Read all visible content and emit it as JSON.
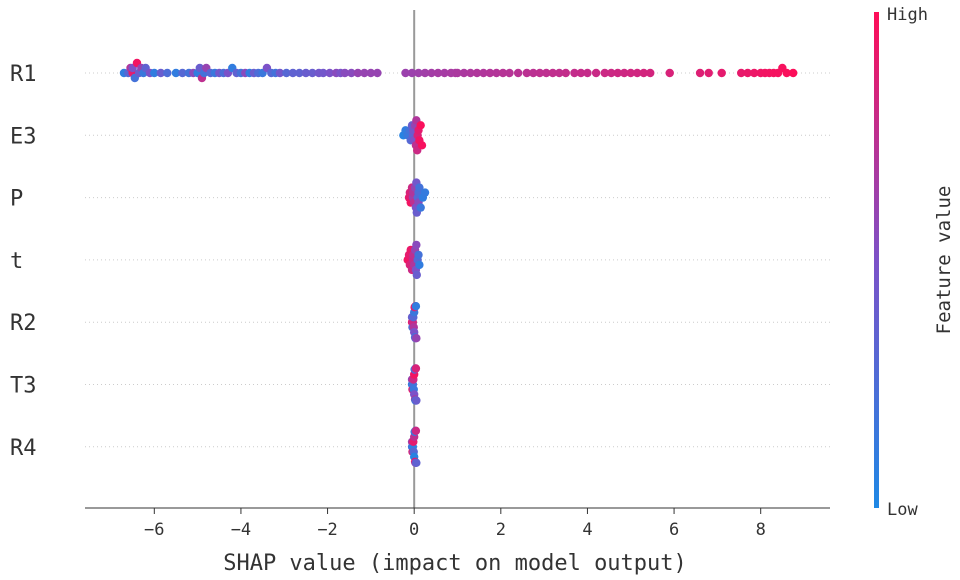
{
  "chart_data": {
    "type": "scatter",
    "subtype": "shap-beeswarm",
    "title": "",
    "xlabel": "SHAP value (impact on model output)",
    "ylabel": "",
    "xlim": [
      -7.6,
      9.6
    ],
    "xticks": [
      -6,
      -4,
      -2,
      0,
      2,
      4,
      6,
      8
    ],
    "xtick_labels": [
      "−6",
      "−4",
      "−2",
      "0",
      "2",
      "4",
      "6",
      "8"
    ],
    "grid": false,
    "colorbar": {
      "label": "Feature value",
      "high_label": "High",
      "low_label": "Low",
      "low_color": "#1e88e5",
      "high_color": "#ff0d57"
    },
    "features": [
      {
        "name": "R1",
        "points": [
          [
            -6.7,
            0.1
          ],
          [
            -6.6,
            0.3
          ],
          [
            -6.55,
            0.7
          ],
          [
            -6.5,
            0.9
          ],
          [
            -6.5,
            0.5
          ],
          [
            -6.45,
            0.2
          ],
          [
            -6.4,
            0.95
          ],
          [
            -6.35,
            0.4
          ],
          [
            -6.3,
            0.6
          ],
          [
            -6.25,
            0.15
          ],
          [
            -6.2,
            0.35
          ],
          [
            -6.1,
            0.5
          ],
          [
            -6.0,
            0.1
          ],
          [
            -5.85,
            0.4
          ],
          [
            -5.7,
            0.25
          ],
          [
            -5.5,
            0.1
          ],
          [
            -5.35,
            0.3
          ],
          [
            -5.2,
            0.2
          ],
          [
            -5.1,
            0.55
          ],
          [
            -5.0,
            0.1
          ],
          [
            -4.95,
            0.4
          ],
          [
            -4.9,
            0.75
          ],
          [
            -4.85,
            0.2
          ],
          [
            -4.8,
            0.6
          ],
          [
            -4.7,
            0.3
          ],
          [
            -4.6,
            0.15
          ],
          [
            -4.5,
            0.45
          ],
          [
            -4.4,
            0.25
          ],
          [
            -4.3,
            0.5
          ],
          [
            -4.2,
            0.1
          ],
          [
            -4.1,
            0.35
          ],
          [
            -4.0,
            0.2
          ],
          [
            -3.9,
            0.55
          ],
          [
            -3.8,
            0.1
          ],
          [
            -3.7,
            0.4
          ],
          [
            -3.6,
            0.25
          ],
          [
            -3.5,
            0.15
          ],
          [
            -3.4,
            0.5
          ],
          [
            -3.3,
            0.3
          ],
          [
            -3.2,
            0.2
          ],
          [
            -3.1,
            0.45
          ],
          [
            -2.95,
            0.3
          ],
          [
            -2.8,
            0.35
          ],
          [
            -2.65,
            0.35
          ],
          [
            -2.5,
            0.4
          ],
          [
            -2.35,
            0.4
          ],
          [
            -2.2,
            0.45
          ],
          [
            -2.1,
            0.45
          ],
          [
            -1.95,
            0.5
          ],
          [
            -1.8,
            0.55
          ],
          [
            -1.7,
            0.5
          ],
          [
            -1.6,
            0.55
          ],
          [
            -1.45,
            0.55
          ],
          [
            -1.3,
            0.6
          ],
          [
            -1.15,
            0.6
          ],
          [
            -1.0,
            0.6
          ],
          [
            -0.85,
            0.6
          ],
          [
            -0.2,
            0.62
          ],
          [
            -0.05,
            0.62
          ],
          [
            0.1,
            0.63
          ],
          [
            0.25,
            0.64
          ],
          [
            0.4,
            0.65
          ],
          [
            0.55,
            0.66
          ],
          [
            0.7,
            0.66
          ],
          [
            0.85,
            0.67
          ],
          [
            0.95,
            0.67
          ],
          [
            1.0,
            0.68
          ],
          [
            1.15,
            0.68
          ],
          [
            1.3,
            0.69
          ],
          [
            1.45,
            0.7
          ],
          [
            1.6,
            0.7
          ],
          [
            1.75,
            0.71
          ],
          [
            1.9,
            0.71
          ],
          [
            2.05,
            0.72
          ],
          [
            2.2,
            0.72
          ],
          [
            2.4,
            0.73
          ],
          [
            2.6,
            0.74
          ],
          [
            2.75,
            0.74
          ],
          [
            2.9,
            0.75
          ],
          [
            3.05,
            0.75
          ],
          [
            3.2,
            0.76
          ],
          [
            3.35,
            0.76
          ],
          [
            3.5,
            0.77
          ],
          [
            3.7,
            0.77
          ],
          [
            3.85,
            0.78
          ],
          [
            4.0,
            0.78
          ],
          [
            4.2,
            0.79
          ],
          [
            4.4,
            0.8
          ],
          [
            4.55,
            0.8
          ],
          [
            4.7,
            0.81
          ],
          [
            4.85,
            0.81
          ],
          [
            5.0,
            0.82
          ],
          [
            5.15,
            0.82
          ],
          [
            5.3,
            0.83
          ],
          [
            5.45,
            0.83
          ],
          [
            5.9,
            0.85
          ],
          [
            6.6,
            0.87
          ],
          [
            6.8,
            0.88
          ],
          [
            7.1,
            0.9
          ],
          [
            7.55,
            0.91
          ],
          [
            7.7,
            0.92
          ],
          [
            7.85,
            0.93
          ],
          [
            8.0,
            0.94
          ],
          [
            8.1,
            0.95
          ],
          [
            8.2,
            0.95
          ],
          [
            8.3,
            0.96
          ],
          [
            8.4,
            0.96
          ],
          [
            8.5,
            0.97
          ],
          [
            8.6,
            0.98
          ],
          [
            8.75,
            0.99
          ]
        ]
      },
      {
        "name": "E3",
        "points": [
          [
            -0.25,
            0.05
          ],
          [
            -0.2,
            0.1
          ],
          [
            -0.15,
            0.15
          ],
          [
            -0.1,
            0.2
          ],
          [
            -0.08,
            0.3
          ],
          [
            -0.05,
            0.4
          ],
          [
            -0.03,
            0.35
          ],
          [
            0.0,
            0.5
          ],
          [
            0.02,
            0.6
          ],
          [
            0.05,
            0.7
          ],
          [
            0.07,
            0.8
          ],
          [
            0.1,
            0.9
          ],
          [
            0.12,
            0.95
          ],
          [
            0.15,
            0.98
          ],
          [
            0.04,
            0.75
          ],
          [
            0.08,
            0.85
          ],
          [
            -0.02,
            0.45
          ],
          [
            0.18,
            0.97
          ]
        ]
      },
      {
        "name": "P",
        "points": [
          [
            -0.12,
            0.9
          ],
          [
            -0.1,
            0.85
          ],
          [
            -0.08,
            0.95
          ],
          [
            -0.05,
            0.8
          ],
          [
            -0.02,
            0.7
          ],
          [
            0.0,
            0.75
          ],
          [
            0.02,
            0.6
          ],
          [
            0.04,
            0.5
          ],
          [
            0.06,
            0.4
          ],
          [
            0.08,
            0.3
          ],
          [
            0.1,
            0.25
          ],
          [
            0.12,
            0.2
          ],
          [
            0.15,
            0.15
          ],
          [
            0.2,
            0.1
          ],
          [
            0.25,
            0.12
          ],
          [
            -0.03,
            0.65
          ],
          [
            0.05,
            0.45
          ],
          [
            0.1,
            0.55
          ]
        ]
      },
      {
        "name": "t",
        "points": [
          [
            -0.15,
            0.95
          ],
          [
            -0.12,
            0.9
          ],
          [
            -0.1,
            0.85
          ],
          [
            -0.08,
            0.92
          ],
          [
            -0.05,
            0.8
          ],
          [
            -0.02,
            0.75
          ],
          [
            0.0,
            0.7
          ],
          [
            0.02,
            0.6
          ],
          [
            0.04,
            0.5
          ],
          [
            0.06,
            0.4
          ],
          [
            0.08,
            0.3
          ],
          [
            0.1,
            0.2
          ],
          [
            0.12,
            0.1
          ],
          [
            0.05,
            0.55
          ],
          [
            -0.03,
            0.78
          ]
        ]
      },
      {
        "name": "R2",
        "points": [
          [
            -0.05,
            0.9
          ],
          [
            -0.04,
            0.2
          ],
          [
            -0.03,
            0.8
          ],
          [
            -0.02,
            0.3
          ],
          [
            -0.01,
            0.7
          ],
          [
            0.0,
            0.15
          ],
          [
            0.01,
            0.85
          ],
          [
            0.02,
            0.25
          ],
          [
            0.03,
            0.95
          ],
          [
            0.04,
            0.1
          ],
          [
            0.05,
            0.6
          ],
          [
            -0.05,
            0.4
          ],
          [
            0.0,
            0.5
          ],
          [
            0.03,
            0.35
          ]
        ]
      },
      {
        "name": "T3",
        "points": [
          [
            -0.05,
            0.1
          ],
          [
            -0.04,
            0.9
          ],
          [
            -0.03,
            0.2
          ],
          [
            -0.02,
            0.8
          ],
          [
            -0.01,
            0.15
          ],
          [
            0.0,
            0.95
          ],
          [
            0.01,
            0.3
          ],
          [
            0.02,
            0.7
          ],
          [
            0.03,
            0.25
          ],
          [
            0.04,
            0.85
          ],
          [
            0.05,
            0.4
          ],
          [
            -0.05,
            0.6
          ],
          [
            0.0,
            0.5
          ],
          [
            0.03,
            0.12
          ]
        ]
      },
      {
        "name": "R4",
        "points": [
          [
            -0.05,
            0.2
          ],
          [
            -0.04,
            0.85
          ],
          [
            -0.03,
            0.1
          ],
          [
            -0.02,
            0.9
          ],
          [
            -0.01,
            0.3
          ],
          [
            0.0,
            0.75
          ],
          [
            0.01,
            0.15
          ],
          [
            0.02,
            0.95
          ],
          [
            0.03,
            0.25
          ],
          [
            0.04,
            0.8
          ],
          [
            0.05,
            0.35
          ],
          [
            -0.05,
            0.65
          ],
          [
            0.0,
            0.05
          ],
          [
            0.03,
            0.55
          ]
        ]
      }
    ]
  }
}
